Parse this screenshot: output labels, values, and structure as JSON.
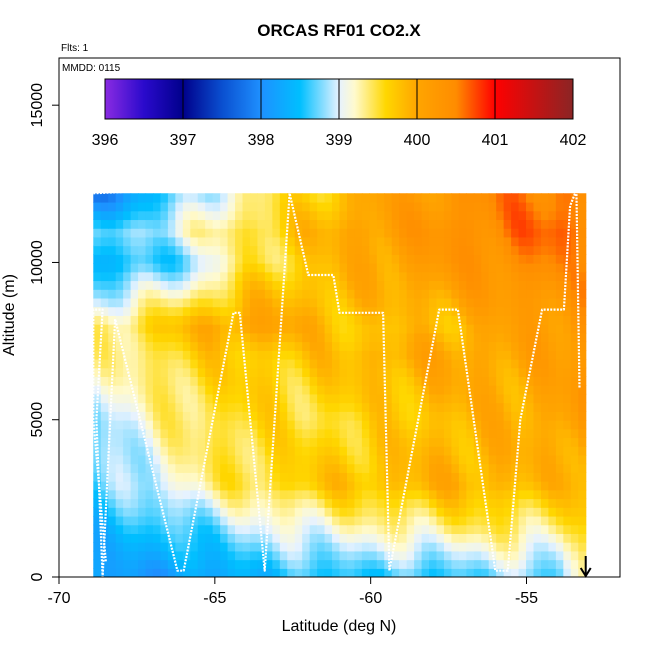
{
  "chart_data": {
    "type": "heatmap",
    "title": "ORCAS RF01 CO2.X",
    "annotations": {
      "flights": "Flts: 1",
      "date": "MMDD: 0115"
    },
    "xlabel": "Latitude (deg N)",
    "ylabel": "Altitude (m)",
    "xlim": [
      -70,
      -52
    ],
    "ylim": [
      0,
      16500
    ],
    "x_ticks": [
      -70,
      -65,
      -60,
      -55
    ],
    "x_tick_labels": [
      "-70",
      "-65",
      "-60",
      "-55"
    ],
    "y_ticks": [
      0,
      5000,
      10000,
      15000
    ],
    "y_tick_labels": [
      "0",
      "5000",
      "10000",
      "15000"
    ],
    "colorbar": {
      "label_values": [
        396,
        397,
        398,
        399,
        400,
        401,
        402
      ],
      "labels": [
        "396",
        "397",
        "398",
        "399",
        "400",
        "401",
        "402"
      ],
      "range": [
        396,
        402
      ],
      "stops": [
        {
          "v": 396.0,
          "c": "#8a2be2"
        },
        {
          "v": 396.5,
          "c": "#2a0acc"
        },
        {
          "v": 397.0,
          "c": "#00008b"
        },
        {
          "v": 397.5,
          "c": "#0a4fd0"
        },
        {
          "v": 398.0,
          "c": "#1e90ff"
        },
        {
          "v": 398.5,
          "c": "#00bfff"
        },
        {
          "v": 399.0,
          "c": "#e6f2ff"
        },
        {
          "v": 399.2,
          "c": "#fffacd"
        },
        {
          "v": 399.6,
          "c": "#ffd700"
        },
        {
          "v": 400.0,
          "c": "#ffa500"
        },
        {
          "v": 400.5,
          "c": "#ff8c00"
        },
        {
          "v": 401.0,
          "c": "#ff0000"
        },
        {
          "v": 402.0,
          "c": "#8b2525"
        }
      ]
    },
    "field": {
      "lat_range": [
        -68.9,
        -53.1
      ],
      "alt_range": [
        0,
        12200
      ],
      "lat_nodes": [
        -68.9,
        -66,
        -64,
        -62,
        -60,
        -58,
        -56,
        -54,
        -53.1
      ],
      "alt_nodes": [
        0,
        1500,
        3000,
        5000,
        7000,
        8000,
        10000,
        11000,
        12200
      ],
      "values": [
        [
          398.2,
          398.1,
          398.4,
          398.5,
          398.6,
          398.5,
          398.8,
          398.6,
          399.5
        ],
        [
          398.4,
          398.6,
          398.9,
          399.1,
          399.2,
          399.3,
          399.4,
          399.3,
          399.6
        ],
        [
          398.6,
          399.2,
          399.5,
          399.7,
          399.8,
          399.9,
          399.9,
          399.8,
          400.0
        ],
        [
          398.8,
          399.4,
          399.6,
          399.5,
          399.6,
          399.8,
          399.9,
          400.0,
          400.3
        ],
        [
          399.2,
          399.6,
          399.7,
          399.7,
          399.9,
          400.0,
          400.0,
          400.1,
          400.3
        ],
        [
          399.3,
          399.8,
          400.1,
          399.9,
          399.7,
          399.8,
          400.0,
          400.2,
          400.4
        ],
        [
          398.3,
          398.7,
          399.4,
          399.7,
          400.0,
          400.2,
          400.4,
          400.5,
          400.3
        ],
        [
          398.6,
          399.1,
          399.5,
          399.8,
          400.1,
          400.3,
          400.5,
          400.7,
          400.5
        ],
        [
          397.8,
          398.7,
          399.3,
          399.6,
          400.0,
          400.2,
          400.5,
          400.6,
          400.4
        ]
      ]
    },
    "flight_track": {
      "lat": [
        -68.5,
        -68.9,
        -68.9,
        -68.6,
        -68.8,
        -68.6,
        -68.2,
        -66.2,
        -66.0,
        -64.4,
        -64.2,
        -63.4,
        -62.6,
        -62.0,
        -61.2,
        -61.0,
        -59.6,
        -59.4,
        -57.8,
        -57.2,
        -56.0,
        -55.6,
        -55.2,
        -54.5,
        -53.8,
        -53.6,
        -53.4,
        -53.3
      ],
      "alt": [
        500,
        5000,
        8500,
        8500,
        5000,
        0,
        8200,
        200,
        200,
        8400,
        8400,
        200,
        12200,
        9600,
        9600,
        8400,
        8400,
        200,
        8500,
        8500,
        200,
        200,
        5000,
        8500,
        8500,
        11800,
        12300,
        6000
      ]
    },
    "top_track": {
      "lat": [
        -68.9,
        -66.6,
        -64.0,
        -62.0,
        -60.0,
        -58.0,
        -56.0,
        -54.5,
        -53.2
      ],
      "alt": [
        12200,
        12300,
        12400,
        12400,
        12450,
        12500,
        12600,
        12450,
        12500
      ]
    },
    "arrow_lat": -53.1
  }
}
